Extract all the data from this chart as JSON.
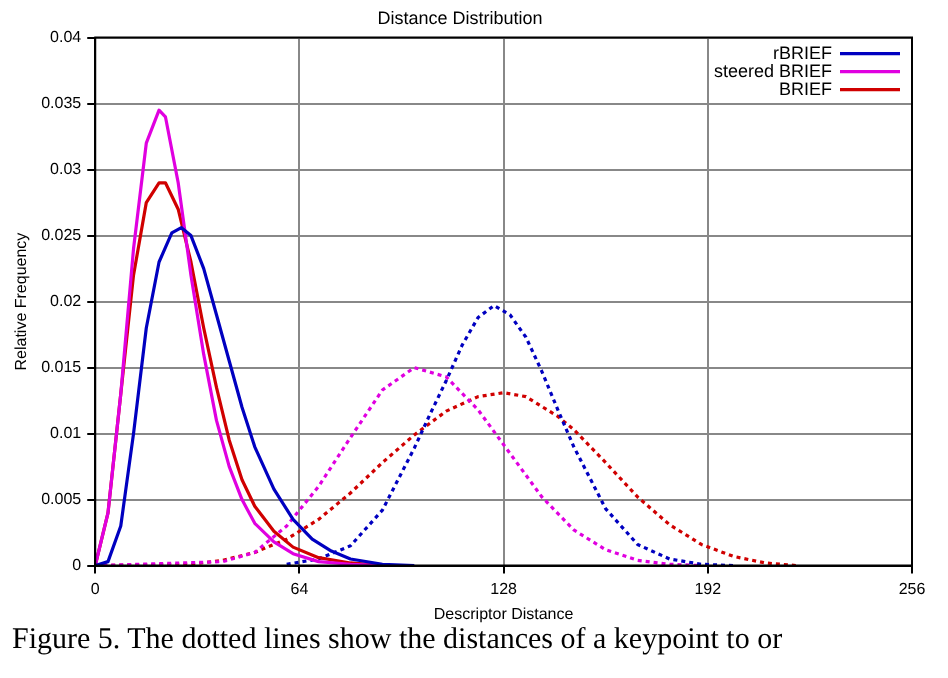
{
  "chart_data": {
    "type": "line",
    "title": "Distance Distribution",
    "xlabel": "Descriptor Distance",
    "ylabel": "Relative Frequency",
    "xlim": [
      0,
      256
    ],
    "xticks": [
      0,
      64,
      128,
      192,
      256
    ],
    "ylim": [
      0,
      0.04
    ],
    "yticks": [
      0,
      0.005,
      0.01,
      0.015,
      0.02,
      0.025,
      0.03,
      0.035,
      0.04
    ],
    "grid": true,
    "legend": "top right",
    "marker": "none",
    "annotations": [
      "Figure 5. The dotted lines show the distances of a keypoint to or"
    ],
    "series": [
      {
        "name": "rBRIEF",
        "color": "#0000c0",
        "line_style": "solid",
        "x": [
          0,
          4,
          8,
          12,
          16,
          20,
          24,
          27,
          30,
          34,
          38,
          42,
          46,
          50,
          56,
          62,
          68,
          74,
          80,
          90,
          100
        ],
        "values": [
          0,
          0.0003,
          0.003,
          0.01,
          0.018,
          0.023,
          0.0252,
          0.0256,
          0.025,
          0.0225,
          0.019,
          0.0155,
          0.012,
          0.009,
          0.0058,
          0.0035,
          0.002,
          0.0011,
          0.0005,
          0.0001,
          0
        ]
      },
      {
        "name": "steered BRIEF",
        "color": "#e000e0",
        "line_style": "solid",
        "x": [
          0,
          4,
          8,
          12,
          16,
          20,
          22,
          26,
          30,
          34,
          38,
          42,
          46,
          50,
          56,
          62,
          70,
          80,
          90
        ],
        "values": [
          0,
          0.004,
          0.013,
          0.024,
          0.032,
          0.0345,
          0.034,
          0.029,
          0.022,
          0.016,
          0.011,
          0.0075,
          0.005,
          0.0032,
          0.0018,
          0.0009,
          0.0003,
          0.0001,
          0
        ]
      },
      {
        "name": "BRIEF",
        "color": "#d00000",
        "line_style": "solid",
        "x": [
          0,
          4,
          8,
          12,
          16,
          20,
          22,
          26,
          30,
          34,
          38,
          42,
          46,
          50,
          56,
          62,
          70,
          80,
          90
        ],
        "values": [
          0,
          0.004,
          0.013,
          0.022,
          0.0275,
          0.029,
          0.029,
          0.027,
          0.023,
          0.018,
          0.0135,
          0.0095,
          0.0065,
          0.0045,
          0.0026,
          0.0014,
          0.0006,
          0.0002,
          0
        ]
      },
      {
        "color": "#0000c0",
        "line_style": "dotted",
        "x": [
          60,
          70,
          80,
          90,
          100,
          105,
          110,
          115,
          120,
          125,
          130,
          135,
          140,
          145,
          150,
          160,
          170,
          180,
          190,
          200
        ],
        "values": [
          0.0001,
          0.0005,
          0.0015,
          0.0042,
          0.0089,
          0.0115,
          0.014,
          0.0167,
          0.0188,
          0.0197,
          0.019,
          0.0173,
          0.0147,
          0.0118,
          0.009,
          0.0043,
          0.0016,
          0.0005,
          0.0001,
          0
        ]
      },
      {
        "color": "#e000e0",
        "line_style": "dotted",
        "x": [
          0,
          40,
          50,
          60,
          70,
          80,
          90,
          100,
          110,
          120,
          130,
          140,
          150,
          160,
          170,
          180,
          190
        ],
        "values": [
          0,
          0.0003,
          0.001,
          0.003,
          0.006,
          0.0097,
          0.0133,
          0.015,
          0.0143,
          0.0118,
          0.0085,
          0.0052,
          0.0027,
          0.0012,
          0.0004,
          0.0001,
          0
        ]
      },
      {
        "color": "#d00000",
        "line_style": "dotted",
        "x": [
          0,
          30,
          40,
          50,
          60,
          70,
          80,
          90,
          100,
          110,
          120,
          128,
          135,
          145,
          150,
          160,
          170,
          180,
          190,
          200,
          210,
          220
        ],
        "values": [
          0,
          0.0001,
          0.0004,
          0.001,
          0.002,
          0.0035,
          0.0055,
          0.0078,
          0.0099,
          0.0117,
          0.0128,
          0.0131,
          0.0128,
          0.0113,
          0.0103,
          0.0078,
          0.0052,
          0.0031,
          0.0016,
          0.0007,
          0.0002,
          0
        ]
      }
    ]
  }
}
